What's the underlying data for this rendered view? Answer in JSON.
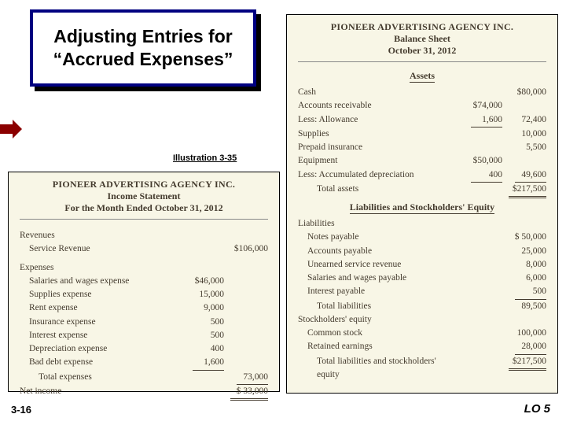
{
  "title": "Adjusting Entries for “Accrued Expenses”",
  "illustration_label": "Illustration 3-35",
  "page_number": "3-16",
  "learning_objective": "LO 5",
  "income_statement": {
    "company": "PIONEER ADVERTISING AGENCY INC.",
    "title": "Income Statement",
    "period": "For the Month Ended October 31, 2012",
    "revenues_label": "Revenues",
    "service_revenue": {
      "label": "Service Revenue",
      "amount": "$106,000"
    },
    "expenses_label": "Expenses",
    "expenses": [
      {
        "label": "Salaries and wages expense",
        "amount": "$46,000"
      },
      {
        "label": "Supplies expense",
        "amount": "15,000"
      },
      {
        "label": "Rent expense",
        "amount": "9,000"
      },
      {
        "label": "Insurance expense",
        "amount": "500"
      },
      {
        "label": "Interest expense",
        "amount": "500"
      },
      {
        "label": "Depreciation expense",
        "amount": "400"
      },
      {
        "label": "Bad debt expense",
        "amount": "1,600"
      }
    ],
    "total_expenses": {
      "label": "Total expenses",
      "amount": "73,000"
    },
    "net_income": {
      "label": "Net income",
      "amount": "$ 33,000"
    }
  },
  "balance_sheet": {
    "company": "PIONEER ADVERTISING AGENCY INC.",
    "title": "Balance Sheet",
    "date": "October 31, 2012",
    "assets_heading": "Assets",
    "assets": {
      "cash": {
        "label": "Cash",
        "amount": "$80,000"
      },
      "ar": {
        "label": "Accounts receivable",
        "sub": "$74,000"
      },
      "allowance": {
        "label": "Less: Allowance",
        "sub": "1,600",
        "net": "72,400"
      },
      "supplies": {
        "label": "Supplies",
        "amount": "10,000"
      },
      "prepaid": {
        "label": "Prepaid insurance",
        "amount": "5,500"
      },
      "equipment": {
        "label": "Equipment",
        "sub": "$50,000"
      },
      "accdep": {
        "label": "Less: Accumulated depreciation",
        "sub": "400",
        "net": "49,600"
      },
      "total": {
        "label": "Total assets",
        "amount": "$217,500"
      }
    },
    "liab_equity_heading": "Liabilities and Stockholders' Equity",
    "liabilities_label": "Liabilities",
    "liabilities": {
      "notes": {
        "label": "Notes payable",
        "amount": "$ 50,000"
      },
      "ap": {
        "label": "Accounts payable",
        "amount": "25,000"
      },
      "unearned": {
        "label": "Unearned service revenue",
        "amount": "8,000"
      },
      "salaries": {
        "label": "Salaries and wages payable",
        "amount": "6,000"
      },
      "interest": {
        "label": "Interest payable",
        "amount": "500"
      },
      "total": {
        "label": "Total liabilities",
        "amount": "89,500"
      }
    },
    "equity_label": "Stockholders' equity",
    "equity": {
      "common": {
        "label": "Common stock",
        "amount": "100,000"
      },
      "retained": {
        "label": "Retained earnings",
        "amount": "28,000"
      },
      "total": {
        "label": "Total liabilities and stockholders' equity",
        "amount": "$217,500"
      }
    }
  }
}
